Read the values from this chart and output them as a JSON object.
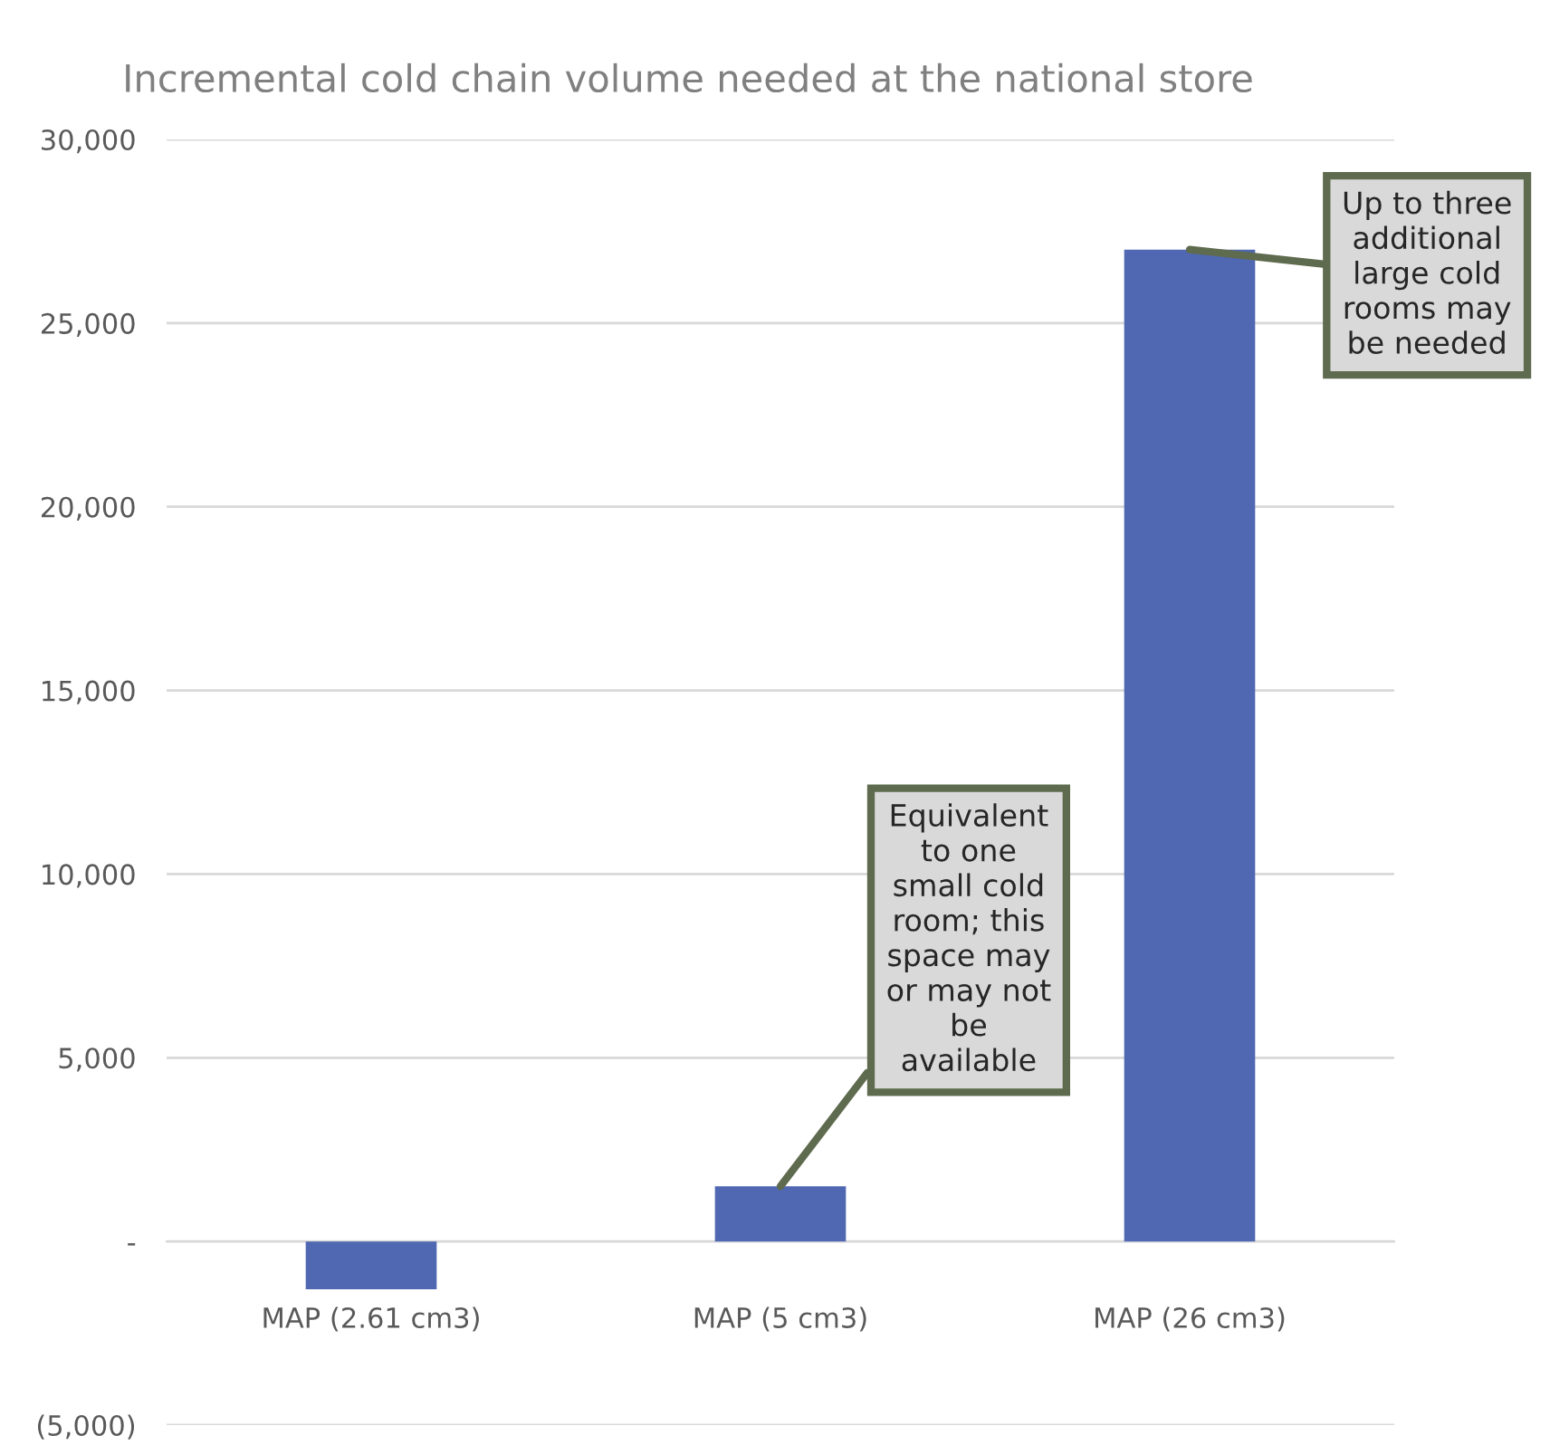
{
  "chart_data": {
    "type": "bar",
    "title": "Incremental cold chain volume needed at the national store",
    "categories": [
      "MAP (2.61 cm3)",
      "MAP (5 cm3)",
      "MAP (26 cm3)"
    ],
    "values": [
      -1300,
      1500,
      27000
    ],
    "color": "#5068b2",
    "ylim": [
      -5000,
      30000
    ],
    "yticks": [
      {
        "value": -5000,
        "label": "(5,000)"
      },
      {
        "value": 0,
        "label": "-"
      },
      {
        "value": 5000,
        "label": "5,000"
      },
      {
        "value": 10000,
        "label": "10,000"
      },
      {
        "value": 15000,
        "label": "15,000"
      },
      {
        "value": 20000,
        "label": "20,000"
      },
      {
        "value": 25000,
        "label": "25,000"
      },
      {
        "value": 30000,
        "label": "30,000"
      }
    ],
    "grid": "y",
    "annotations": [
      {
        "text": "Equivalent to one small cold room; this space may or may not be available",
        "x": "MAP (5 cm3)",
        "y": 1500
      },
      {
        "text": "Up to three additional large cold rooms may be needed",
        "x": "MAP (26 cm3)",
        "y": 27000
      }
    ]
  }
}
